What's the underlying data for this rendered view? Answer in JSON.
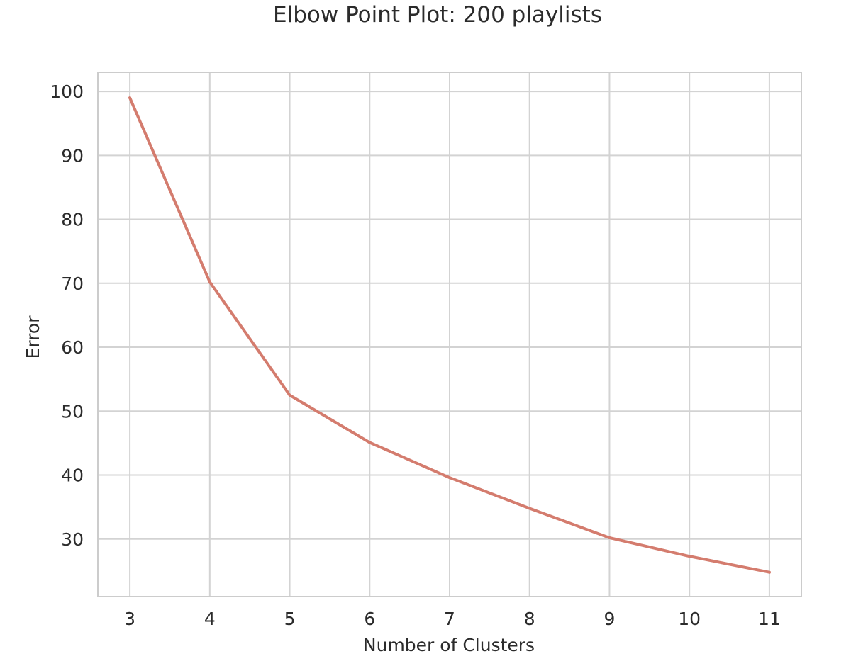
{
  "chart_data": {
    "type": "line",
    "title": "Elbow Point Plot: 200 playlists",
    "xlabel": "Number of Clusters",
    "ylabel": "Error",
    "x": [
      3,
      4,
      5,
      6,
      7,
      8,
      9,
      10,
      11
    ],
    "series": [
      {
        "values": [
          99.0,
          70.2,
          52.5,
          45.1,
          39.6,
          34.8,
          30.2,
          27.3,
          24.8
        ]
      }
    ],
    "xlim": [
      2.6,
      11.4
    ],
    "ylim": [
      21,
      103
    ],
    "xticks": [
      3,
      4,
      5,
      6,
      7,
      8,
      9,
      10,
      11
    ],
    "yticks": [
      30,
      40,
      50,
      60,
      70,
      80,
      90,
      100
    ],
    "grid": true,
    "legend": "none",
    "colors": {
      "line": "#d47c6e",
      "grid": "#d3d3d3",
      "frame": "#cccccc",
      "text": "#2b2b2b"
    }
  }
}
